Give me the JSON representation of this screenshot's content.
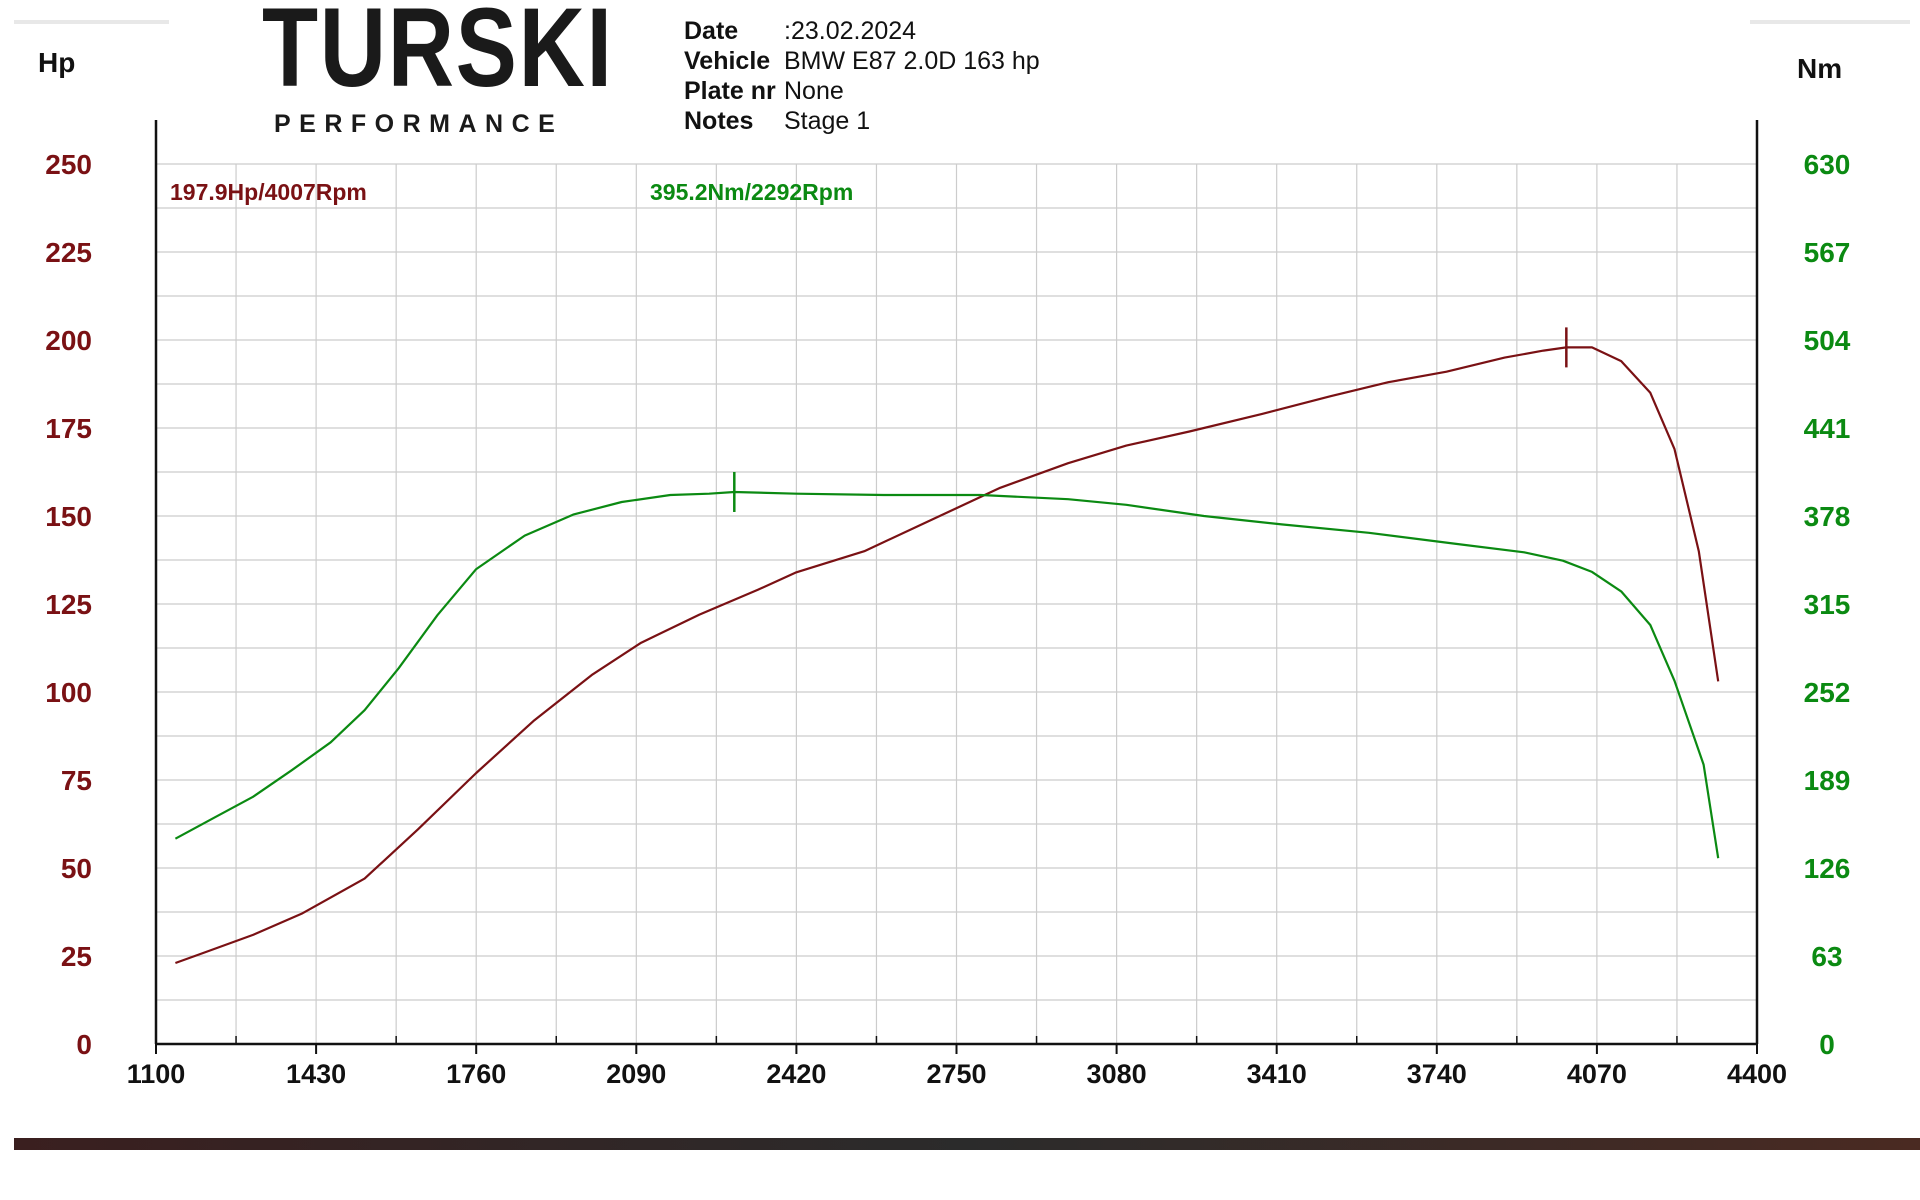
{
  "logo": {
    "name": "TURSKI",
    "tagline": "PERFORMANCE"
  },
  "info": {
    "date_label": "Date",
    "date_value": ":23.02.2024",
    "vehicle_label": "Vehicle",
    "vehicle_value": "BMW E87 2.0D 163 hp",
    "plate_label": "Plate nr",
    "plate_value": "None",
    "notes_label": "Notes",
    "notes_value": "Stage 1"
  },
  "colors": {
    "power": "#7a1114",
    "torque": "#0b8a12",
    "grid": "#cccccc",
    "axis": "#111111"
  },
  "chart_data": {
    "type": "line",
    "title": "",
    "xlabel": "",
    "ylabel_left": "Hp",
    "ylabel_right": "Nm",
    "xlim": [
      1100,
      4400
    ],
    "ylim_left": [
      0,
      250
    ],
    "ylim_right": [
      0,
      630
    ],
    "x_ticks": [
      1100,
      1430,
      1760,
      2090,
      2420,
      2750,
      3080,
      3410,
      3740,
      4070,
      4400
    ],
    "y_ticks_left": [
      0,
      25,
      50,
      75,
      100,
      125,
      150,
      175,
      200,
      225,
      250
    ],
    "y_ticks_right": [
      0,
      63,
      126,
      189,
      252,
      315,
      378,
      441,
      504,
      567,
      630
    ],
    "grid": true,
    "annotations": [
      {
        "text": "197.9Hp/4007Rpm",
        "series": "power"
      },
      {
        "text": "395.2Nm/2292Rpm",
        "series": "torque"
      }
    ],
    "peaks": {
      "power": {
        "x": 4007,
        "y": 197.9
      },
      "torque": {
        "x": 2292,
        "y": 395.2
      }
    },
    "series": [
      {
        "id": "power",
        "axis": "left",
        "x": [
          1140,
          1200,
          1300,
          1400,
          1530,
          1640,
          1760,
          1880,
          2000,
          2100,
          2220,
          2340,
          2420,
          2560,
          2700,
          2840,
          2980,
          3100,
          3230,
          3380,
          3520,
          3640,
          3760,
          3880,
          3960,
          4007,
          4060,
          4120,
          4180,
          4230,
          4280,
          4320
        ],
        "y": [
          23,
          26,
          31,
          37,
          47,
          61,
          77,
          92,
          105,
          114,
          122,
          129,
          134,
          140,
          149,
          158,
          165,
          170,
          174,
          179,
          184,
          188,
          191,
          195,
          197,
          197.9,
          197.9,
          194,
          185,
          169,
          140,
          103
        ]
      },
      {
        "id": "torque",
        "axis": "right",
        "x": [
          1140,
          1220,
          1300,
          1380,
          1460,
          1530,
          1600,
          1680,
          1760,
          1860,
          1960,
          2060,
          2160,
          2240,
          2292,
          2420,
          2600,
          2800,
          2980,
          3100,
          3260,
          3420,
          3600,
          3780,
          3920,
          4000,
          4060,
          4120,
          4180,
          4230,
          4290,
          4320
        ],
        "y": [
          147,
          162,
          177,
          196,
          216,
          239,
          269,
          307,
          340,
          364,
          379,
          388,
          393,
          394,
          395.2,
          394,
          393,
          393,
          390,
          386,
          378,
          372,
          366,
          358,
          352,
          346,
          338,
          324,
          300,
          260,
          200,
          133
        ]
      }
    ]
  }
}
